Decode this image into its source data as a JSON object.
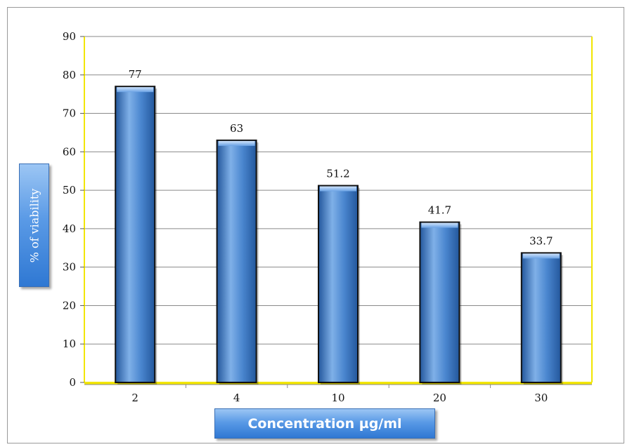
{
  "chart_data": {
    "type": "bar",
    "categories": [
      "2",
      "4",
      "10",
      "20",
      "30"
    ],
    "values": [
      77,
      63,
      51.2,
      41.7,
      33.7
    ],
    "data_labels": [
      "77",
      "63",
      "51.2",
      "41.7",
      "33.7"
    ],
    "title": "",
    "xlabel": "Concentration µg/ml",
    "ylabel": "% of viability",
    "ylim": [
      0,
      90
    ],
    "yticks": [
      "0",
      "10",
      "20",
      "30",
      "40",
      "50",
      "60",
      "70",
      "80",
      "90"
    ],
    "grid": true,
    "legend": "none",
    "colors": {
      "bar_light": "#7fb0e8",
      "bar_mid": "#4a86cf",
      "bar_dark": "#23579c",
      "bar_outline": "#111111",
      "gridline": "#8a8a8a",
      "floor": "#f2e600",
      "label_box": "#4a8ee0"
    }
  }
}
